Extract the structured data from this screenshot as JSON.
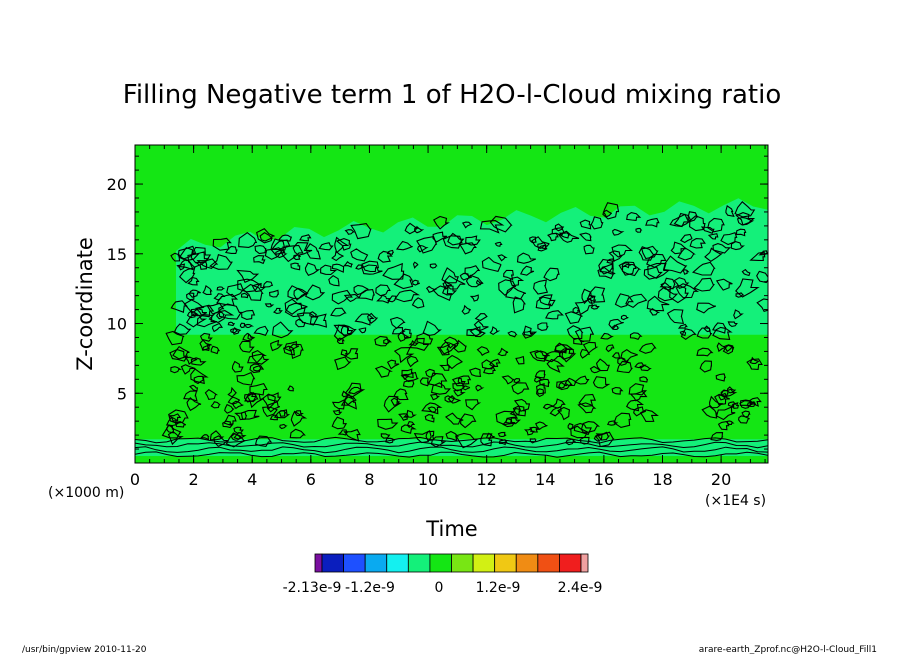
{
  "chart_data": {
    "type": "heatmap",
    "title": "Filling Negative term 1 of H2O-l-Cloud mixing ratio",
    "xlabel": "Time",
    "ylabel": "Z-coordinate",
    "x_unit": "(×1E4 s)",
    "y_unit": "(×1000 m)",
    "xlim": [
      0,
      21.6
    ],
    "ylim": [
      0,
      22.8
    ],
    "x_ticks": [
      0,
      2,
      4,
      6,
      8,
      10,
      12,
      14,
      16,
      18,
      20
    ],
    "y_ticks": [
      5,
      10,
      15,
      20
    ],
    "grid": false,
    "colorbar": {
      "colors": [
        "#7a0fa0",
        "#0a1ebe",
        "#1e50ff",
        "#0aaaf0",
        "#14f0f0",
        "#14f07a",
        "#14e614",
        "#78e614",
        "#d2f014",
        "#f0c814",
        "#f08c14",
        "#f05014",
        "#f01e1e",
        "#f0a0a0"
      ],
      "tick_labels": [
        "-2.13e-9",
        "-1.2e-9",
        "0",
        "1.2e-9",
        "2.4e-9"
      ]
    },
    "regions": {
      "background_value": "0",
      "background_color": "#14e614",
      "band_color": "#14f07a",
      "upper_band": {
        "x_start": 1.4,
        "x_end": 21.6,
        "top_start": 15.2,
        "top_end": 18.6,
        "bottom": 9.2
      },
      "lower_band": {
        "x_start": 0,
        "x_end": 21.6,
        "bottom": 0.5,
        "top": 1.7
      }
    }
  },
  "footer": {
    "left": "/usr/bin/gpview   2010-11-20",
    "right": "arare-earth_Zprof.nc@H2O-l-Cloud_Fill1"
  }
}
